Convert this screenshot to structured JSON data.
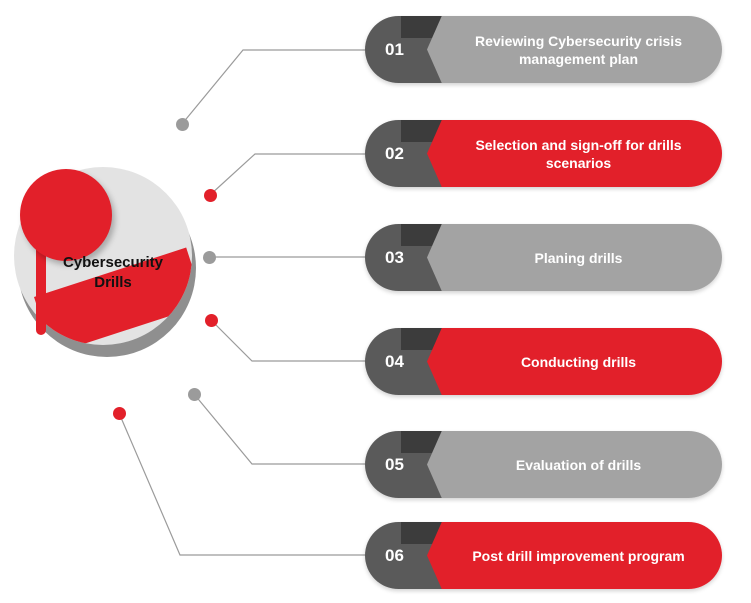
{
  "hub": {
    "title_line1": "Cybersecurity",
    "title_line2": "Drills"
  },
  "colors": {
    "accent_red": "#e2202a",
    "gray_panel": "#a3a3a3",
    "dark_panel": "#5a5a5a",
    "connector": "#9b9b9b"
  },
  "steps": [
    {
      "number": "01",
      "label": "Reviewing Cybersecurity crisis management plan",
      "color": "gray"
    },
    {
      "number": "02",
      "label": "Selection and sign-off for drills scenarios",
      "color": "red"
    },
    {
      "number": "03",
      "label": "Planing drills",
      "color": "gray"
    },
    {
      "number": "04",
      "label": "Conducting drills",
      "color": "red"
    },
    {
      "number": "05",
      "label": "Evaluation of drills",
      "color": "gray"
    },
    {
      "number": "06",
      "label": "Post drill improvement program",
      "color": "red"
    }
  ]
}
